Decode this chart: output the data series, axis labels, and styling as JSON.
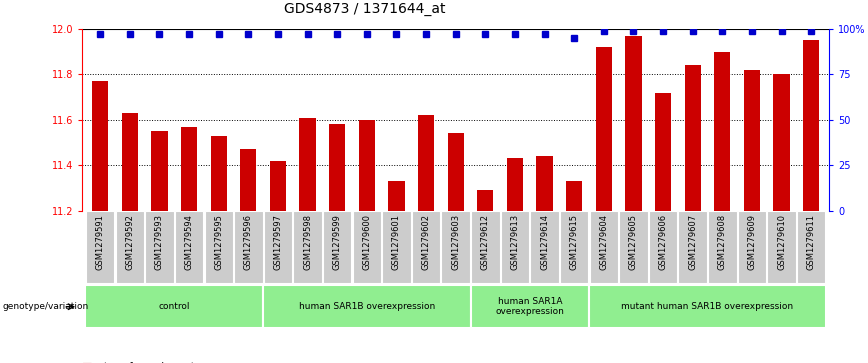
{
  "title": "GDS4873 / 1371644_at",
  "samples": [
    "GSM1279591",
    "GSM1279592",
    "GSM1279593",
    "GSM1279594",
    "GSM1279595",
    "GSM1279596",
    "GSM1279597",
    "GSM1279598",
    "GSM1279599",
    "GSM1279600",
    "GSM1279601",
    "GSM1279602",
    "GSM1279603",
    "GSM1279612",
    "GSM1279613",
    "GSM1279614",
    "GSM1279615",
    "GSM1279604",
    "GSM1279605",
    "GSM1279606",
    "GSM1279607",
    "GSM1279608",
    "GSM1279609",
    "GSM1279610",
    "GSM1279611"
  ],
  "bar_values": [
    11.77,
    11.63,
    11.55,
    11.57,
    11.53,
    11.47,
    11.42,
    11.61,
    11.58,
    11.6,
    11.33,
    11.62,
    11.54,
    11.29,
    11.43,
    11.44,
    11.33,
    11.92,
    11.97,
    11.72,
    11.84,
    11.9,
    11.82,
    11.8,
    11.95
  ],
  "percentile_values": [
    97,
    97,
    97,
    97,
    97,
    97,
    97,
    97,
    97,
    97,
    97,
    97,
    97,
    97,
    97,
    97,
    95,
    99,
    99,
    99,
    99,
    99,
    99,
    99,
    99
  ],
  "bar_color": "#cc0000",
  "dot_color": "#0000cc",
  "ymin": 11.2,
  "ymax": 12.0,
  "yticks": [
    11.2,
    11.4,
    11.6,
    11.8,
    12.0
  ],
  "right_yticks": [
    0,
    25,
    50,
    75,
    100
  ],
  "grid_values": [
    11.4,
    11.6,
    11.8
  ],
  "groups": [
    {
      "label": "control",
      "start": 0,
      "end": 5
    },
    {
      "label": "human SAR1B overexpression",
      "start": 6,
      "end": 12
    },
    {
      "label": "human SAR1A\noverexpression",
      "start": 13,
      "end": 16
    },
    {
      "label": "mutant human SAR1B overexpression",
      "start": 17,
      "end": 24
    }
  ],
  "group_color": "#90ee90",
  "bar_width": 0.55,
  "tick_bg_color": "#cccccc",
  "background_color": "#ffffff",
  "genotype_label": "genotype/variation"
}
